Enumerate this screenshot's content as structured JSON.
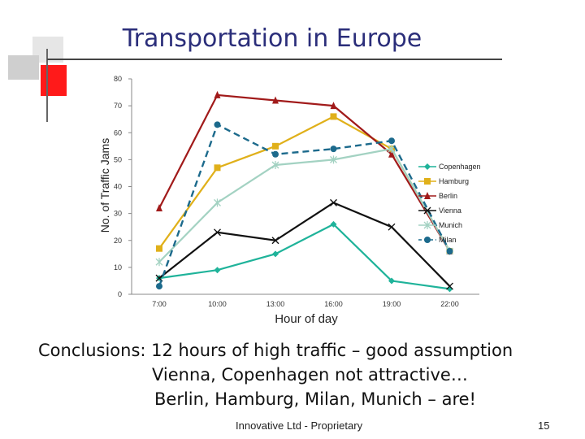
{
  "slide": {
    "title": "Transportation in Europe",
    "conclusion_line1": "Conclusions: 12 hours of high traffic – good assumption",
    "conclusion_line2": "Vienna, Copenhagen not attractive…",
    "conclusion_line3": "Berlin, Hamburg, Milan, Munich – are!",
    "footer": "Innovative  Ltd - Proprietary",
    "page_number": "15",
    "accent_colors": {
      "title": "#2b2e7a",
      "deco_red": "#ff1a1a",
      "deco_gray": "#d9d9d9"
    }
  },
  "chart_data": {
    "type": "line",
    "title": "",
    "xlabel": "Hour of day",
    "ylabel": "No. of Traffic Jams",
    "categories": [
      "7:00",
      "10:00",
      "13:00",
      "16:00",
      "19:00",
      "22:00"
    ],
    "ylim": [
      0,
      80
    ],
    "yticks": [
      0,
      10,
      20,
      30,
      40,
      50,
      60,
      70,
      80
    ],
    "grid": false,
    "legend": "right",
    "series": [
      {
        "name": "Copenhagen",
        "values": [
          6,
          9,
          15,
          26,
          5,
          2
        ],
        "color": "#1fb39a",
        "marker": "diamond",
        "dash": false
      },
      {
        "name": "Hamburg",
        "values": [
          17,
          47,
          55,
          66,
          54,
          16
        ],
        "color": "#e0b01a",
        "marker": "square",
        "dash": false
      },
      {
        "name": "Berlin",
        "values": [
          32,
          74,
          72,
          70,
          52,
          16
        ],
        "color": "#a11a1a",
        "marker": "triangle",
        "dash": false
      },
      {
        "name": "Vienna",
        "values": [
          6,
          23,
          20,
          34,
          25,
          3
        ],
        "color": "#111111",
        "marker": "x",
        "dash": false
      },
      {
        "name": "Munich",
        "values": [
          12,
          34,
          48,
          50,
          54,
          16
        ],
        "color": "#a3d2c2",
        "marker": "star",
        "dash": false
      },
      {
        "name": "Milan",
        "values": [
          3,
          63,
          52,
          54,
          57,
          16
        ],
        "color": "#1c6a8c",
        "marker": "circle",
        "dash": true
      }
    ]
  }
}
